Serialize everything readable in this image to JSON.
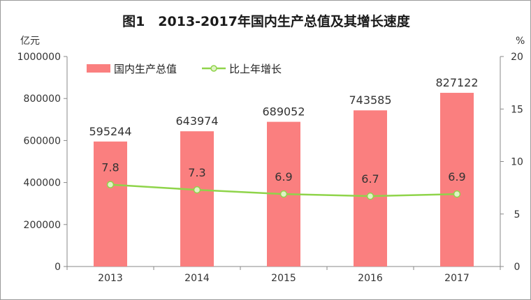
{
  "chart_data": {
    "type": "bar+line",
    "title": "图1　2013-2017年国内生产总值及其增长速度",
    "y_left_unit": "亿元",
    "y_right_unit": "%",
    "categories": [
      "2013",
      "2014",
      "2015",
      "2016",
      "2017"
    ],
    "series": [
      {
        "name": "国内生产总值",
        "type": "bar",
        "axis": "left",
        "values": [
          595244,
          643974,
          689052,
          743585,
          827122
        ],
        "labels": [
          "595244",
          "643974",
          "689052",
          "743585",
          "827122"
        ]
      },
      {
        "name": "比上年增长",
        "type": "line",
        "axis": "right",
        "values": [
          7.8,
          7.3,
          6.9,
          6.7,
          6.9
        ],
        "labels": [
          "7.8",
          "7.3",
          "6.9",
          "6.7",
          "6.9"
        ]
      }
    ],
    "y_left_ticks": [
      "0",
      "200000",
      "400000",
      "600000",
      "800000",
      "1000000"
    ],
    "y_left_range": [
      0,
      1000000
    ],
    "y_right_ticks": [
      "0",
      "5",
      "10",
      "15",
      "20"
    ],
    "y_right_range": [
      0,
      20
    ],
    "legend_position": "top-left",
    "grid": false,
    "colors": {
      "bar": "#fa7f7f",
      "line": "#8fd44a",
      "marker_fill": "#dff3c4",
      "axis": "#888888"
    }
  }
}
